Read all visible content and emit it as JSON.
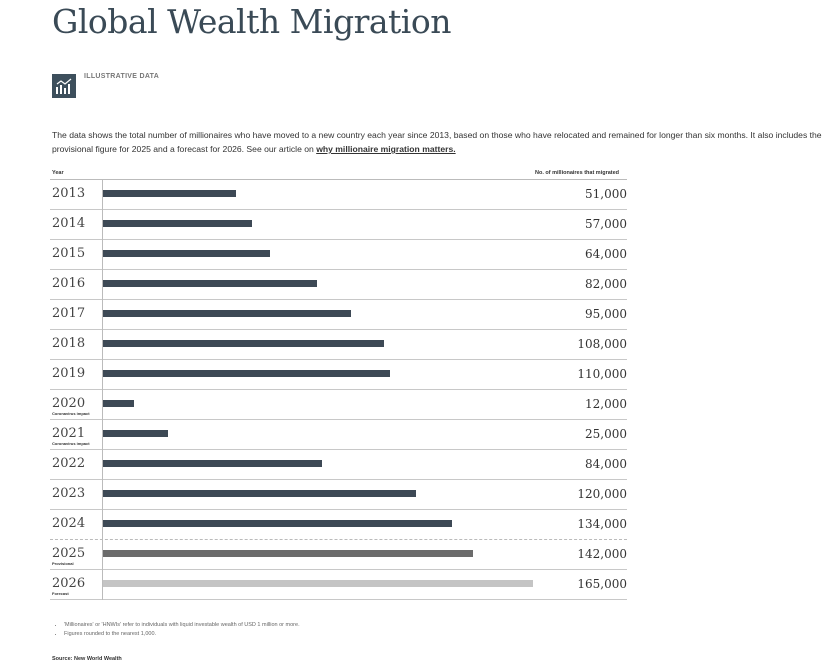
{
  "title": "Global Wealth Migration",
  "tag": "ILLUSTRATIVE DATA",
  "description": "The data shows the total number of millionaires who have moved to a new country each year since 2013, based on those who have relocated and remained for longer than six months. It also includes the provisional figure for 2025 and a forecast for 2026. See our article on ",
  "link_text": "why millionaire migration matters.",
  "colors": {
    "actual": "#3d4955",
    "provisional": "#6b6b6b",
    "forecast": "#c4c4c4"
  },
  "chart_data": {
    "type": "bar",
    "orientation": "horizontal",
    "xlabel": "Year",
    "ylabel": "No. of millionaires that migrated",
    "categories": [
      "2013",
      "2014",
      "2015",
      "2016",
      "2017",
      "2018",
      "2019",
      "2020",
      "2021",
      "2022",
      "2023",
      "2024",
      "2025",
      "2026"
    ],
    "notes": [
      "",
      "",
      "",
      "",
      "",
      "",
      "",
      "Coronavirus impact",
      "Coronavirus impact",
      "",
      "",
      "",
      "Provisional",
      "Forecast"
    ],
    "values": [
      51000,
      57000,
      64000,
      82000,
      95000,
      108000,
      110000,
      12000,
      25000,
      84000,
      120000,
      134000,
      142000,
      165000
    ],
    "labels": [
      "51,000",
      "57,000",
      "64,000",
      "82,000",
      "95,000",
      "108,000",
      "110,000",
      "12,000",
      "25,000",
      "84,000",
      "120,000",
      "134,000",
      "142,000",
      "165,000"
    ],
    "kinds": [
      "actual",
      "actual",
      "actual",
      "actual",
      "actual",
      "actual",
      "actual",
      "actual",
      "actual",
      "actual",
      "actual",
      "actual",
      "provisional",
      "forecast"
    ],
    "xlim": [
      0,
      165000
    ]
  },
  "footnotes": [
    "'Millionaires' or 'HNWIs' refer to individuals with liquid investable wealth of USD 1 million or more.",
    "Figures rounded to the nearest 1,000."
  ],
  "source": "Source: New World Wealth"
}
